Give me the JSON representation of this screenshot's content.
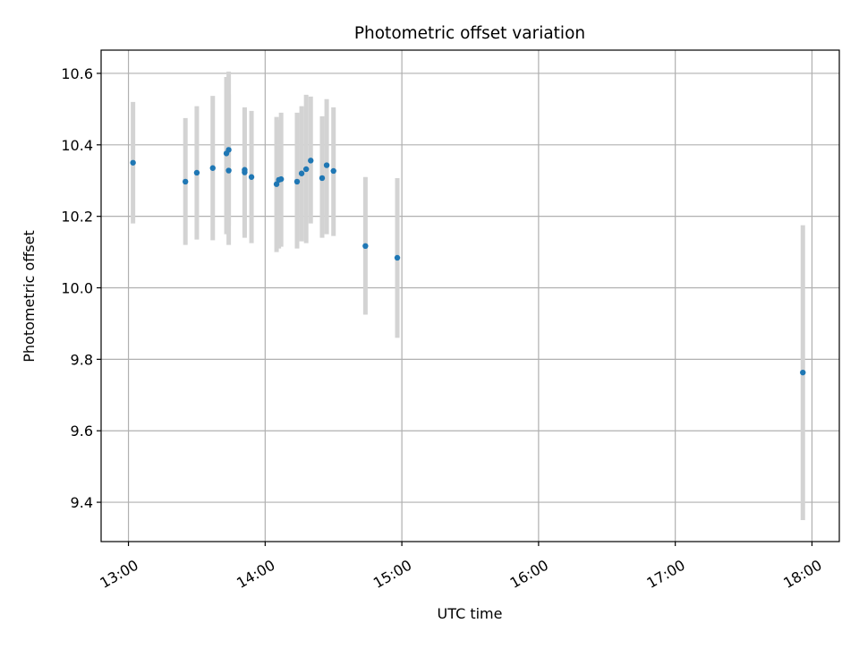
{
  "chart_data": {
    "type": "scatter",
    "title": "Photometric offset variation",
    "xlabel": "UTC time",
    "ylabel": "Photometric offset",
    "x_axis": {
      "kind": "time",
      "ticks": [
        "13:00",
        "14:00",
        "15:00",
        "16:00",
        "17:00",
        "18:00"
      ],
      "range": [
        "12:48",
        "18:12"
      ]
    },
    "y_axis": {
      "ticks": [
        "9.4",
        "9.6",
        "9.8",
        "10.0",
        "10.2",
        "10.4",
        "10.6"
      ],
      "range": [
        9.29,
        10.665
      ]
    },
    "grid": true,
    "colors": {
      "points": "#1f77b4",
      "errorbars": "#d3d3d3",
      "grid": "#b0b0b0"
    },
    "points": [
      {
        "t": "13:02",
        "y": 10.35,
        "lo": 10.18,
        "hi": 10.52
      },
      {
        "t": "13:25",
        "y": 10.297,
        "lo": 10.12,
        "hi": 10.475
      },
      {
        "t": "13:30",
        "y": 10.322,
        "lo": 10.135,
        "hi": 10.508
      },
      {
        "t": "13:37",
        "y": 10.335,
        "lo": 10.133,
        "hi": 10.537
      },
      {
        "t": "13:43",
        "y": 10.376,
        "lo": 10.15,
        "hi": 10.59
      },
      {
        "t": "13:44",
        "y": 10.386,
        "lo": 10.175,
        "hi": 10.605
      },
      {
        "t": "13:44",
        "y": 10.328,
        "lo": 10.12,
        "hi": 10.54
      },
      {
        "t": "13:51",
        "y": 10.33,
        "lo": 10.15,
        "hi": 10.505
      },
      {
        "t": "13:51",
        "y": 10.323,
        "lo": 10.14,
        "hi": 10.5
      },
      {
        "t": "13:54",
        "y": 10.31,
        "lo": 10.125,
        "hi": 10.495
      },
      {
        "t": "14:05",
        "y": 10.29,
        "lo": 10.1,
        "hi": 10.478
      },
      {
        "t": "14:06",
        "y": 10.302,
        "lo": 10.11,
        "hi": 10.47
      },
      {
        "t": "14:07",
        "y": 10.304,
        "lo": 10.115,
        "hi": 10.49
      },
      {
        "t": "14:14",
        "y": 10.297,
        "lo": 10.11,
        "hi": 10.49
      },
      {
        "t": "14:16",
        "y": 10.32,
        "lo": 10.13,
        "hi": 10.508
      },
      {
        "t": "14:18",
        "y": 10.332,
        "lo": 10.125,
        "hi": 10.54
      },
      {
        "t": "14:20",
        "y": 10.356,
        "lo": 10.18,
        "hi": 10.535
      },
      {
        "t": "14:25",
        "y": 10.307,
        "lo": 10.14,
        "hi": 10.48
      },
      {
        "t": "14:27",
        "y": 10.343,
        "lo": 10.15,
        "hi": 10.528
      },
      {
        "t": "14:30",
        "y": 10.327,
        "lo": 10.145,
        "hi": 10.505
      },
      {
        "t": "14:44",
        "y": 10.117,
        "lo": 9.925,
        "hi": 10.31
      },
      {
        "t": "14:58",
        "y": 10.084,
        "lo": 9.86,
        "hi": 10.307
      },
      {
        "t": "17:56",
        "y": 9.763,
        "lo": 9.35,
        "hi": 10.175
      }
    ]
  }
}
